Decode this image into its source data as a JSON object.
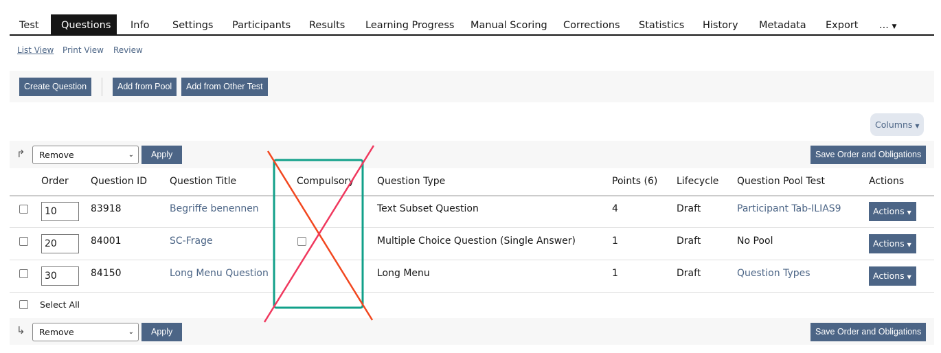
{
  "tabs": [
    "Test",
    "Questions",
    "Info",
    "Settings",
    "Participants",
    "Results",
    "Learning Progress",
    "Manual Scoring",
    "Corrections",
    "Statistics",
    "History",
    "Metadata",
    "Export",
    "..."
  ],
  "active_tab": "Questions",
  "subtabs": [
    "List View",
    "Print View",
    "Review"
  ],
  "toolbar": {
    "create": "Create Question",
    "add_pool": "Add from Pool",
    "add_other": "Add from Other Test"
  },
  "columns_button": "Columns",
  "multi_action": {
    "selected": "Remove",
    "apply": "Apply",
    "save": "Save Order and Obligations"
  },
  "table": {
    "headers": [
      "Order",
      "Question ID",
      "Question Title",
      "Compulsory",
      "Question Type",
      "Points (6)",
      "Lifecycle",
      "Question Pool Test",
      "Actions"
    ],
    "rows": [
      {
        "order": "10",
        "id": "83918",
        "title": "Begriffe benennen",
        "compulsory": null,
        "type": "Text Subset Question",
        "points": "4",
        "lifecycle": "Draft",
        "pool": "Participant Tab-ILIAS9",
        "pool_link": true,
        "actions": "Actions"
      },
      {
        "order": "20",
        "id": "84001",
        "title": "SC-Frage",
        "compulsory": false,
        "type": "Multiple Choice Question (Single Answer)",
        "points": "1",
        "lifecycle": "Draft",
        "pool": "No Pool",
        "pool_link": false,
        "actions": "Actions"
      },
      {
        "order": "30",
        "id": "84150",
        "title": "Long Menu Question",
        "compulsory": null,
        "type": "Long Menu",
        "points": "1",
        "lifecycle": "Draft",
        "pool": "Question Types",
        "pool_link": true,
        "actions": "Actions"
      }
    ],
    "select_all": "Select All"
  },
  "colors": {
    "accent": "#4c6586",
    "annotation_box": "#12a08a",
    "annotation_line1": "#f2471f",
    "annotation_line2": "#f0385e"
  }
}
